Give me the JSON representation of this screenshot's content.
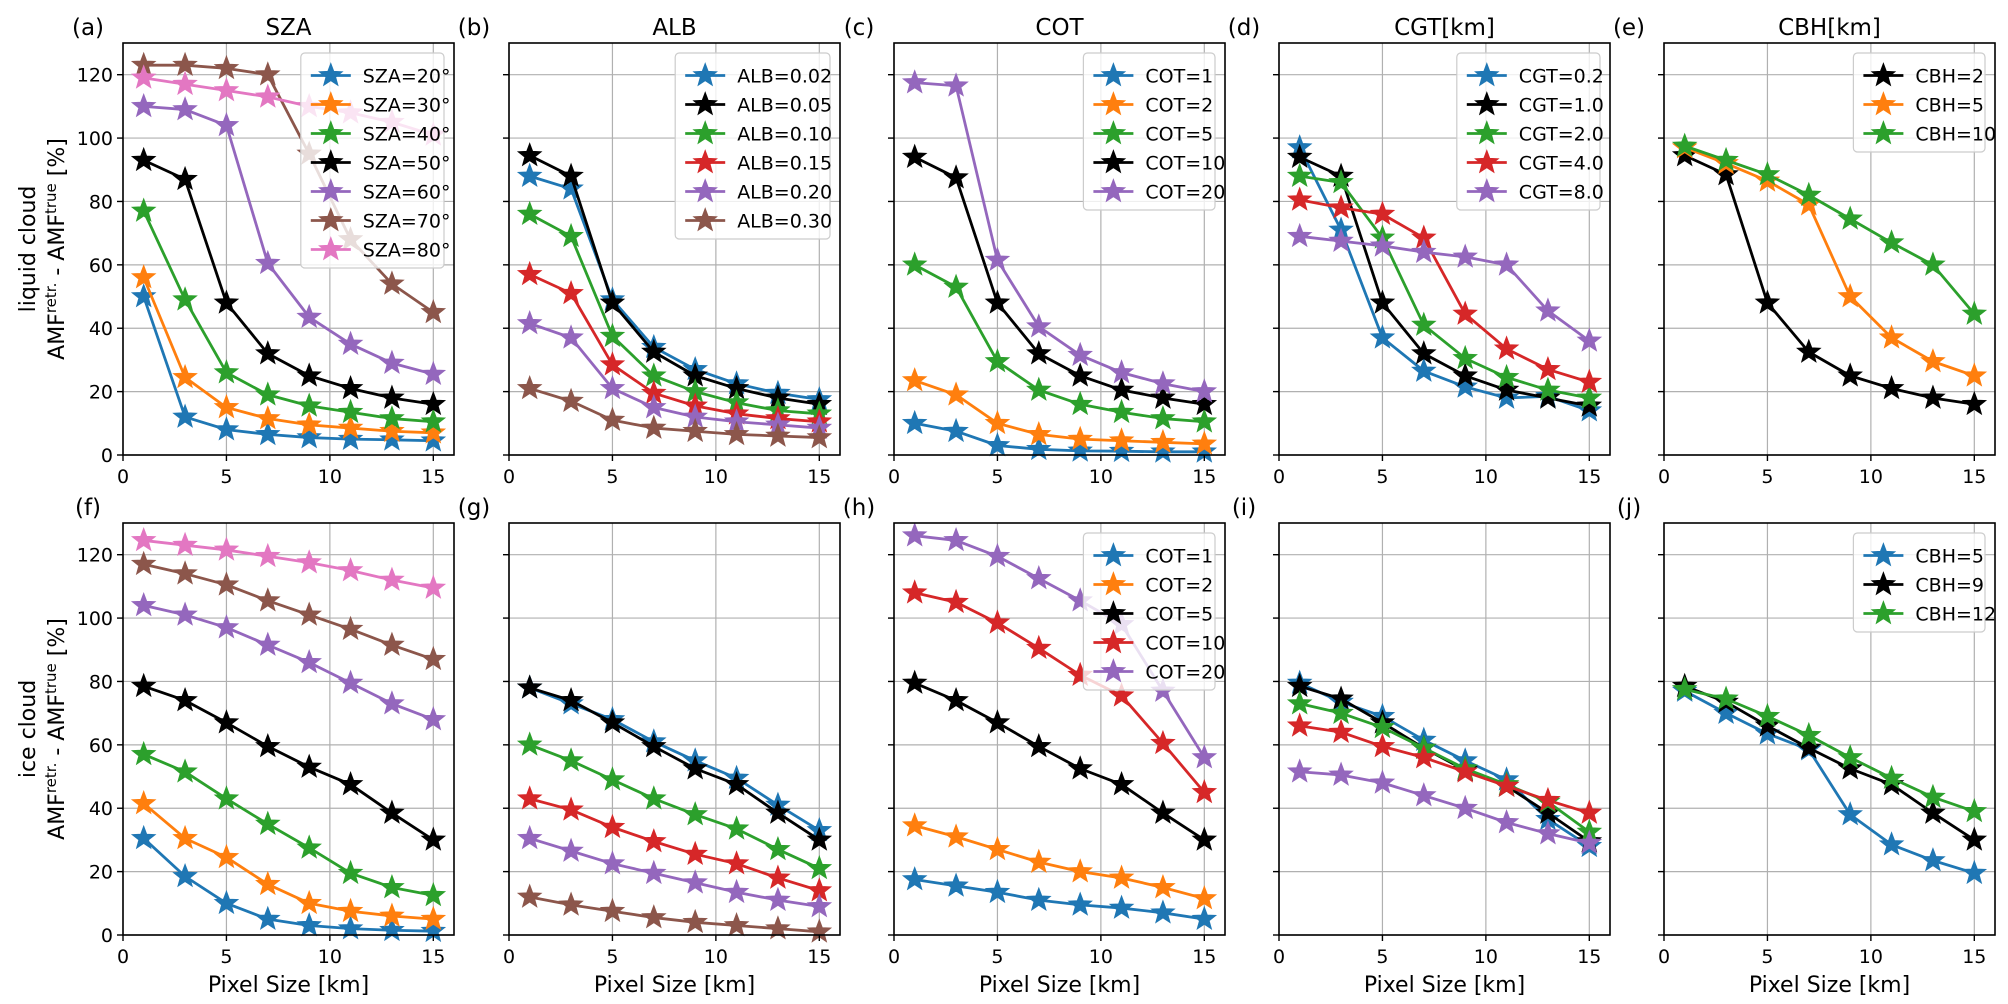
{
  "chart_data": {
    "type": "line",
    "layout": "2 rows x 5 columns of small-multiple line charts, star markers",
    "shared": {
      "x": [
        1,
        3,
        5,
        7,
        9,
        11,
        13,
        15
      ],
      "xlim": [
        0,
        16
      ],
      "ylim": [
        0,
        130
      ],
      "xticks": [
        0,
        5,
        10,
        15
      ],
      "yticks": [
        0,
        20,
        40,
        60,
        80,
        100,
        120
      ],
      "xlabel": "Pixel Size [km]",
      "grid": true,
      "marker": "star",
      "row_ylabels": [
        {
          "line1": "liquid cloud",
          "amf": "AMF",
          "sup_retr": "retr.",
          "minus": " - ",
          "sup_true": "true",
          "unit": " [%]"
        },
        {
          "line1": "ice cloud",
          "amf": "AMF",
          "sup_retr": "retr.",
          "minus": " - ",
          "sup_true": "true",
          "unit": " [%]"
        }
      ]
    },
    "panels": [
      {
        "letter": "(a)",
        "title": "SZA",
        "row": 0,
        "col": 0,
        "legend": "upper-right",
        "series": [
          {
            "name": "SZA=20°",
            "color": "#1f77b4",
            "values": [
              50,
              12,
              8,
              6.5,
              5.5,
              5,
              4.8,
              4.5
            ]
          },
          {
            "name": "SZA=30°",
            "color": "#ff7f0e",
            "values": [
              56,
              24.5,
              15,
              11.5,
              9.5,
              8.5,
              7.5,
              7
            ]
          },
          {
            "name": "SZA=40°",
            "color": "#2ca02c",
            "values": [
              77,
              49,
              26,
              19,
              15.5,
              13.5,
              11.5,
              10.5
            ]
          },
          {
            "name": "SZA=50°",
            "color": "#000000",
            "values": [
              93,
              87,
              48,
              32,
              25,
              21,
              18,
              16
            ]
          },
          {
            "name": "SZA=60°",
            "color": "#9467bd",
            "values": [
              110,
              109,
              104,
              60.5,
              43.5,
              35,
              29,
              25.5
            ]
          },
          {
            "name": "SZA=70°",
            "color": "#8c564b",
            "values": [
              123,
              123,
              122,
              120,
              95,
              68,
              54,
              45
            ]
          },
          {
            "name": "SZA=80°",
            "color": "#e377c2",
            "values": [
              119,
              117,
              115,
              113,
              110,
              108,
              105,
              101
            ]
          }
        ]
      },
      {
        "letter": "(b)",
        "title": "ALB",
        "row": 0,
        "col": 1,
        "legend": "upper-right",
        "series": [
          {
            "name": "ALB=0.02",
            "color": "#1f77b4",
            "values": [
              88,
              84,
              49,
              34,
              27,
              22.5,
              19.5,
              17.5
            ]
          },
          {
            "name": "ALB=0.05",
            "color": "#000000",
            "values": [
              94.5,
              88,
              48,
              32.5,
              25,
              21,
              18,
              16
            ]
          },
          {
            "name": "ALB=0.10",
            "color": "#2ca02c",
            "values": [
              76,
              69,
              37.5,
              25,
              20,
              16.5,
              14,
              13
            ]
          },
          {
            "name": "ALB=0.15",
            "color": "#d62728",
            "values": [
              57,
              51,
              28.5,
              19.5,
              15.5,
              13,
              11.5,
              10.5
            ]
          },
          {
            "name": "ALB=0.20",
            "color": "#9467bd",
            "values": [
              41.5,
              37,
              21,
              15,
              12,
              10.5,
              9.5,
              8.5
            ]
          },
          {
            "name": "ALB=0.30",
            "color": "#8c564b",
            "values": [
              21,
              17,
              11,
              8.5,
              7.5,
              6.5,
              6,
              5.5
            ]
          }
        ]
      },
      {
        "letter": "(c)",
        "title": "COT",
        "row": 0,
        "col": 2,
        "legend": "upper-right",
        "series": [
          {
            "name": "COT=1",
            "color": "#1f77b4",
            "values": [
              10,
              7.5,
              3,
              1.8,
              1.3,
              1.2,
              1,
              1
            ]
          },
          {
            "name": "COT=2",
            "color": "#ff7f0e",
            "values": [
              23.5,
              19,
              10,
              6.5,
              5,
              4.5,
              4,
              3.5
            ]
          },
          {
            "name": "COT=5",
            "color": "#2ca02c",
            "values": [
              60,
              53,
              29.5,
              20.5,
              16,
              13.5,
              11.5,
              10.5
            ]
          },
          {
            "name": "COT=10",
            "color": "#000000",
            "values": [
              94,
              87.5,
              48,
              32,
              25,
              20.5,
              18,
              16
            ]
          },
          {
            "name": "COT=20",
            "color": "#9467bd",
            "values": [
              117.5,
              116.5,
              61.5,
              40.5,
              31.5,
              26,
              22.5,
              20
            ]
          }
        ]
      },
      {
        "letter": "(d)",
        "title": "CGT[km]",
        "row": 0,
        "col": 3,
        "legend": "upper-right",
        "series": [
          {
            "name": "CGT=0.2",
            "color": "#1f77b4",
            "values": [
              97,
              71,
              37,
              26.5,
              21.5,
              18,
              18.5,
              14
            ]
          },
          {
            "name": "CGT=1.0",
            "color": "#000000",
            "values": [
              94,
              88,
              48,
              32,
              25,
              20.5,
              18,
              15.5
            ]
          },
          {
            "name": "CGT=2.0",
            "color": "#2ca02c",
            "values": [
              88,
              86,
              68.5,
              41,
              30.5,
              24.5,
              20.5,
              18
            ]
          },
          {
            "name": "CGT=4.0",
            "color": "#d62728",
            "values": [
              80.5,
              78,
              76,
              68.5,
              44.5,
              33.5,
              27,
              23
            ]
          },
          {
            "name": "CGT=8.0",
            "color": "#9467bd",
            "values": [
              69,
              67.5,
              66,
              64,
              62.5,
              60,
              45.5,
              36
            ]
          }
        ]
      },
      {
        "letter": "(e)",
        "title": "CBH[km]",
        "row": 0,
        "col": 4,
        "legend": "upper-right",
        "series": [
          {
            "name": "CBH=2",
            "color": "#000000",
            "values": [
              94.5,
              88.5,
              48,
              32.5,
              25,
              21,
              18,
              16
            ]
          },
          {
            "name": "CBH=5",
            "color": "#ff7f0e",
            "values": [
              97,
              92,
              86.5,
              79,
              50,
              37,
              29.5,
              25
            ]
          },
          {
            "name": "CBH=10",
            "color": "#2ca02c",
            "values": [
              97.5,
              93,
              88.5,
              82,
              74.5,
              67,
              60,
              44.5
            ]
          }
        ]
      },
      {
        "letter": "(f)",
        "title": "",
        "row": 1,
        "col": 0,
        "legend": "none",
        "series": [
          {
            "name": "SZA=20°",
            "color": "#1f77b4",
            "values": [
              30.5,
              18.5,
              10,
              5,
              3,
              2,
              1.5,
              1.2
            ]
          },
          {
            "name": "SZA=30°",
            "color": "#ff7f0e",
            "values": [
              41.5,
              30.5,
              24.5,
              16,
              10,
              7.5,
              6,
              5
            ]
          },
          {
            "name": "SZA=40°",
            "color": "#2ca02c",
            "values": [
              57,
              51.5,
              43,
              35,
              27.5,
              19.5,
              15,
              12.5
            ]
          },
          {
            "name": "SZA=50°",
            "color": "#000000",
            "values": [
              78.5,
              74,
              67,
              59.5,
              53,
              47.5,
              38.5,
              30
            ]
          },
          {
            "name": "SZA=60°",
            "color": "#9467bd",
            "values": [
              104,
              101,
              97,
              91.5,
              86,
              79.5,
              73,
              68
            ]
          },
          {
            "name": "SZA=70°",
            "color": "#8c564b",
            "values": [
              117,
              114,
              110.5,
              105.5,
              101,
              96.5,
              91.5,
              87
            ]
          },
          {
            "name": "SZA=80°",
            "color": "#e377c2",
            "values": [
              124.5,
              123,
              121.5,
              119.5,
              117.5,
              115,
              112,
              109.5
            ]
          }
        ]
      },
      {
        "letter": "(g)",
        "title": "",
        "row": 1,
        "col": 1,
        "legend": "none",
        "series": [
          {
            "name": "ALB=0.02",
            "color": "#1f77b4",
            "values": [
              78,
              73,
              68,
              61,
              55,
              49.5,
              41,
              33
            ]
          },
          {
            "name": "ALB=0.05",
            "color": "#000000",
            "values": [
              78,
              74,
              67,
              59.5,
              52.5,
              47.5,
              38.5,
              30
            ]
          },
          {
            "name": "ALB=0.10",
            "color": "#2ca02c",
            "values": [
              60,
              55,
              49,
              43,
              38,
              33.5,
              27,
              21
            ]
          },
          {
            "name": "ALB=0.15",
            "color": "#d62728",
            "values": [
              43,
              39.5,
              34,
              29.5,
              25.5,
              22.5,
              18,
              14
            ]
          },
          {
            "name": "ALB=0.20",
            "color": "#9467bd",
            "values": [
              30.5,
              26.5,
              22.5,
              19.5,
              16.5,
              13.5,
              11,
              9
            ]
          },
          {
            "name": "ALB=0.30",
            "color": "#8c564b",
            "values": [
              12,
              9.5,
              7.5,
              5.5,
              4,
              3,
              2,
              1
            ]
          }
        ]
      },
      {
        "letter": "(h)",
        "title": "",
        "row": 1,
        "col": 2,
        "legend": "upper-right",
        "series": [
          {
            "name": "COT=1",
            "color": "#1f77b4",
            "values": [
              17.5,
              15.5,
              13.5,
              11,
              9.5,
              8.5,
              7,
              5
            ]
          },
          {
            "name": "COT=2",
            "color": "#ff7f0e",
            "values": [
              34.5,
              31,
              27,
              23,
              20,
              18,
              15,
              11.5
            ]
          },
          {
            "name": "COT=5",
            "color": "#000000",
            "values": [
              79.5,
              74,
              67,
              59.5,
              52.5,
              47.5,
              38.5,
              30
            ]
          },
          {
            "name": "COT=10",
            "color": "#d62728",
            "values": [
              108,
              105,
              98.5,
              90.5,
              82,
              75.5,
              60.5,
              45
            ]
          },
          {
            "name": "COT=20",
            "color": "#9467bd",
            "values": [
              126,
              124.5,
              119.5,
              112.5,
              105.5,
              98,
              77,
              56
            ]
          }
        ]
      },
      {
        "letter": "(i)",
        "title": "",
        "row": 1,
        "col": 3,
        "legend": "none",
        "series": [
          {
            "name": "CGT=0.2",
            "color": "#1f77b4",
            "values": [
              79.5,
              73.5,
              69,
              61.5,
              55,
              49,
              36.5,
              28
            ]
          },
          {
            "name": "CGT=1.0",
            "color": "#000000",
            "values": [
              78.5,
              74.5,
              67,
              59,
              52,
              47,
              38.5,
              29.5
            ]
          },
          {
            "name": "CGT=2.0",
            "color": "#2ca02c",
            "values": [
              73,
              70,
              65.5,
              59,
              52.5,
              47.5,
              42,
              32.5
            ]
          },
          {
            "name": "CGT=4.0",
            "color": "#d62728",
            "values": [
              66,
              64,
              59.5,
              56,
              51.5,
              47,
              42.5,
              38.5
            ]
          },
          {
            "name": "CGT=8.0",
            "color": "#9467bd",
            "values": [
              51.5,
              50.5,
              48,
              44,
              40,
              35.5,
              32,
              29
            ]
          }
        ]
      },
      {
        "letter": "(j)",
        "title": "",
        "row": 1,
        "col": 4,
        "legend": "upper-right",
        "series": [
          {
            "name": "CBH=5",
            "color": "#1f77b4",
            "values": [
              77,
              70,
              63.5,
              58.5,
              38,
              28.5,
              23.5,
              19.5
            ]
          },
          {
            "name": "CBH=9",
            "color": "#000000",
            "values": [
              78.5,
              73.5,
              66,
              59,
              52.5,
              47.5,
              38.5,
              30
            ]
          },
          {
            "name": "CBH=12",
            "color": "#2ca02c",
            "values": [
              77.5,
              74.5,
              69,
              63,
              56,
              49.5,
              43.5,
              39
            ]
          }
        ]
      }
    ]
  }
}
